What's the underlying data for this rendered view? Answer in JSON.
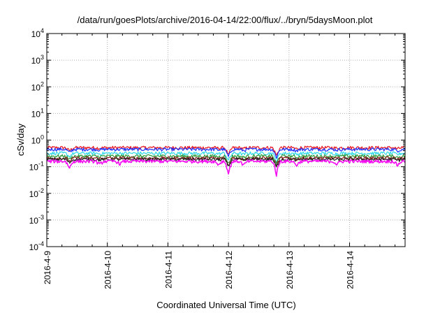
{
  "chart_data": {
    "type": "line",
    "title": "/data/run/goesPlots/archive/2016-04-14/22:00/flux/../bryn/5daysMoon.plot",
    "xlabel": "Coordinated Universal Time (UTC)",
    "ylabel": "cSv/day",
    "yscale": "log",
    "ylim": [
      0.0001,
      10000
    ],
    "xlim": [
      "2016-04-09",
      "2016-04-14 22:00"
    ],
    "grid": true,
    "legend": "none",
    "x_ticks": [
      {
        "value": "2016-04-09",
        "label": "2016-4-9"
      },
      {
        "value": "2016-04-10",
        "label": "2016-4-10"
      },
      {
        "value": "2016-04-11",
        "label": "2016-4-11"
      },
      {
        "value": "2016-04-12",
        "label": "2016-4-12"
      },
      {
        "value": "2016-04-13",
        "label": "2016-4-13"
      },
      {
        "value": "2016-04-14",
        "label": "2016-4-14"
      }
    ],
    "y_ticks": [
      {
        "value": 0.0001,
        "base": "10",
        "exp": "-4"
      },
      {
        "value": 0.001,
        "base": "10",
        "exp": "-3"
      },
      {
        "value": 0.01,
        "base": "10",
        "exp": "-2"
      },
      {
        "value": 0.1,
        "base": "10",
        "exp": "-1"
      },
      {
        "value": 1,
        "base": "10",
        "exp": "0"
      },
      {
        "value": 10,
        "base": "10",
        "exp": "1"
      },
      {
        "value": 100,
        "base": "10",
        "exp": "2"
      },
      {
        "value": 1000,
        "base": "10",
        "exp": "3"
      },
      {
        "value": 10000,
        "base": "10",
        "exp": "4"
      }
    ],
    "series": [
      {
        "color": "#e8141e",
        "level": 0.52
      },
      {
        "color": "#1a2dff",
        "level": 0.45
      },
      {
        "color": "#2fd9e8",
        "level": 0.32
      },
      {
        "color": "#2e9b3a",
        "level": 0.25
      },
      {
        "color": "#8a1a1a",
        "level": 0.21
      },
      {
        "color": "#222222",
        "level": 0.19
      },
      {
        "color": "#f40cf0",
        "level": 0.16
      }
    ],
    "dips": [
      {
        "x": "2016-04-09 09:00",
        "factor": 0.55
      },
      {
        "x": "2016-04-09 21:00",
        "factor": 0.75
      },
      {
        "x": "2016-04-10 05:00",
        "factor": 0.8
      },
      {
        "x": "2016-04-11 20:00",
        "factor": 0.75
      },
      {
        "x": "2016-04-12 00:00",
        "factor": 0.32
      },
      {
        "x": "2016-04-12 06:00",
        "factor": 0.7
      },
      {
        "x": "2016-04-12 19:00",
        "factor": 0.3
      },
      {
        "x": "2016-04-13 03:00",
        "factor": 0.7
      },
      {
        "x": "2016-04-13 19:00",
        "factor": 0.75
      },
      {
        "x": "2016-04-14 19:00",
        "factor": 0.7
      }
    ]
  }
}
